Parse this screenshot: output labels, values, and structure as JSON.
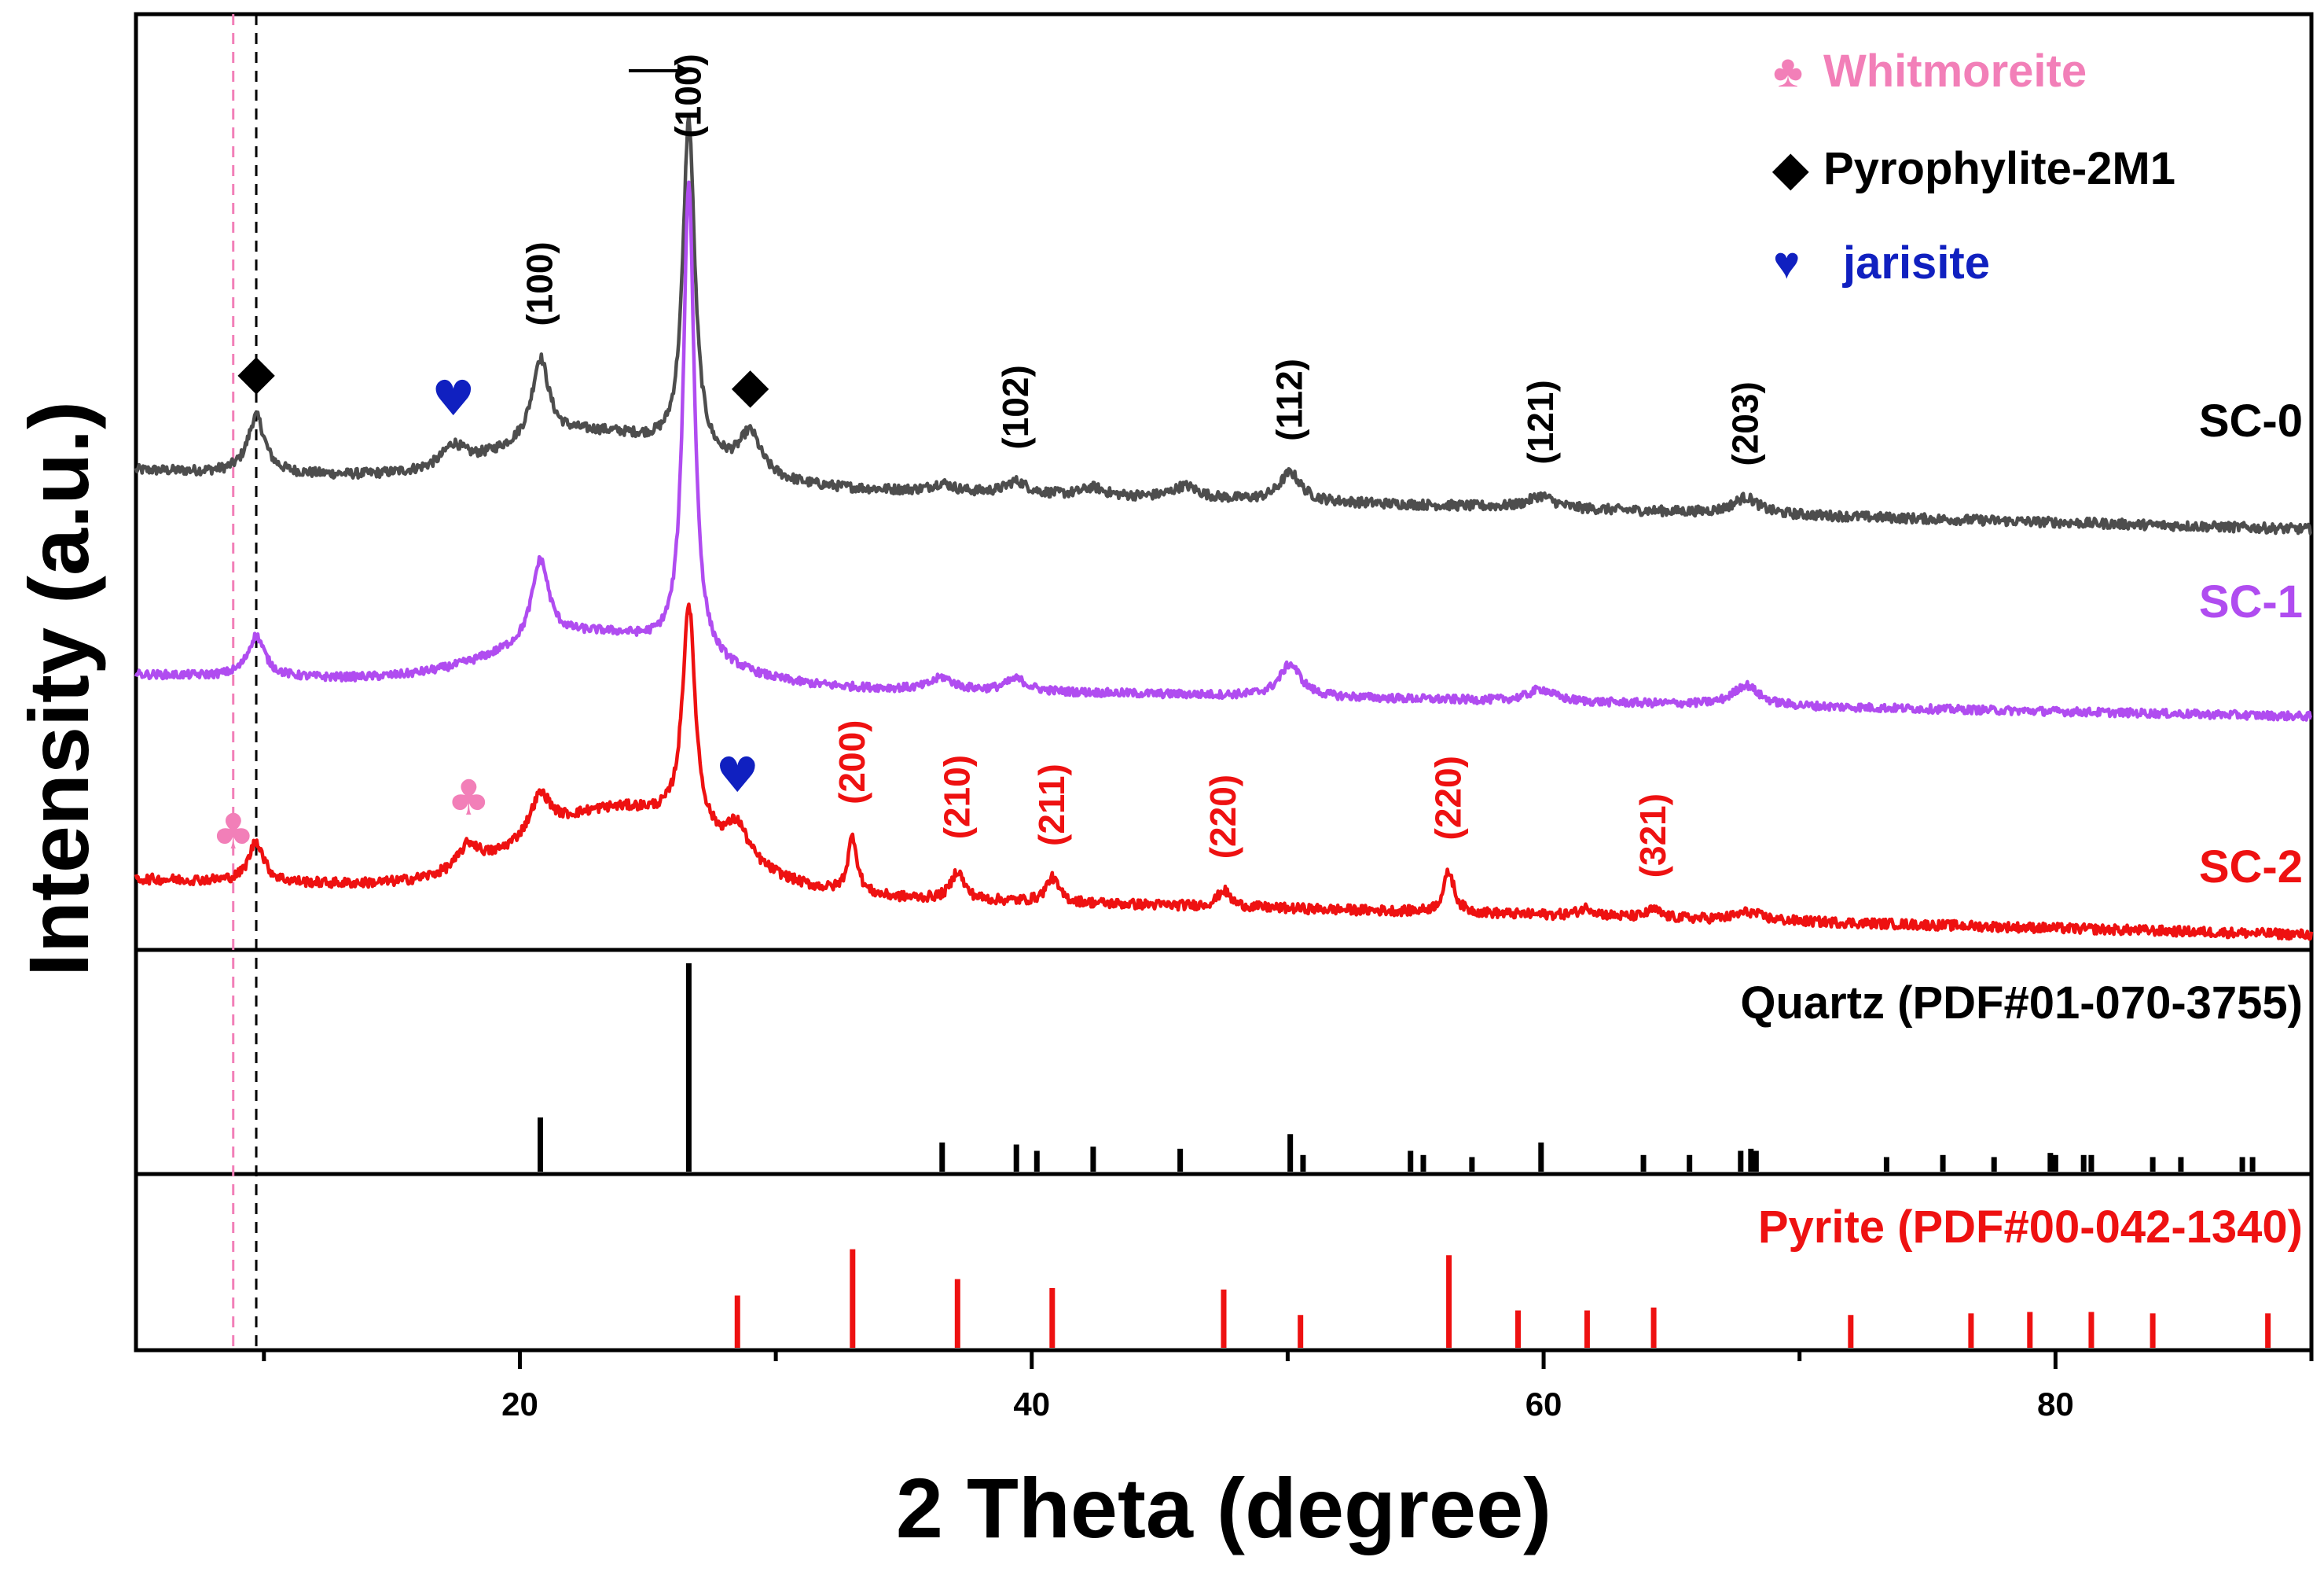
{
  "chart_data": {
    "type": "line",
    "xlabel": "2 Theta (degree)",
    "ylabel": "Intensity (a.u.)",
    "xlim": [
      5,
      90
    ],
    "xticks": [
      20,
      40,
      60,
      80
    ],
    "xticklabels": [
      "20",
      "40",
      "60",
      "80"
    ],
    "colors": {
      "SC-0": "#4d4d4d",
      "SC-1": "#b04cf0",
      "SC-2": "#ee1111",
      "whitmoreite": "#f27fb8",
      "pyrophylite": "#000000",
      "jarisite": "#1020c0",
      "quartz": "#000000",
      "pyrite": "#ee1111"
    },
    "legend": [
      {
        "marker": "club",
        "symbol": "♣",
        "label": "Whitmoreite",
        "color": "#f27fb8"
      },
      {
        "marker": "diamond",
        "symbol": "◆",
        "label": "Pyrophylite-2M1",
        "color": "#000000"
      },
      {
        "marker": "heart",
        "symbol": "♥",
        "label": "jarisite",
        "color": "#1020c0"
      }
    ],
    "series": [
      {
        "name": "SC-0",
        "label": "SC-0",
        "color": "#4d4d4d",
        "baseline": 0.85,
        "slope": -0.0017,
        "hump": {
          "center": 23,
          "width": 5,
          "height": 0.12
        },
        "noise": 0.012,
        "peaks": [
          [
            9.7,
            0.14,
            0.4
          ],
          [
            17.4,
            0.05,
            0.5
          ],
          [
            20.8,
            0.2,
            0.4
          ],
          [
            26.6,
            0.82,
            0.28
          ],
          [
            29.0,
            0.1,
            0.5
          ],
          [
            36.5,
            0.02,
            0.5
          ],
          [
            39.4,
            0.03,
            0.5
          ],
          [
            42.4,
            0.02,
            0.5
          ],
          [
            46.0,
            0.03,
            0.6
          ],
          [
            50.1,
            0.07,
            0.5
          ],
          [
            59.9,
            0.03,
            0.6
          ],
          [
            67.9,
            0.04,
            0.6
          ]
        ]
      },
      {
        "name": "SC-1",
        "label": "SC-1",
        "color": "#b04cf0",
        "baseline": 0.35,
        "slope": -0.0012,
        "hump": {
          "center": 23,
          "width": 5,
          "height": 0.12
        },
        "noise": 0.01,
        "peaks": [
          [
            9.7,
            0.1,
            0.4
          ],
          [
            20.8,
            0.2,
            0.4
          ],
          [
            26.6,
            1.16,
            0.26
          ],
          [
            36.5,
            0.03,
            0.5
          ],
          [
            39.4,
            0.03,
            0.5
          ],
          [
            50.1,
            0.08,
            0.5
          ],
          [
            59.9,
            0.03,
            0.6
          ],
          [
            67.9,
            0.05,
            0.6
          ]
        ]
      },
      {
        "name": "SC-2",
        "label": "SC-2",
        "color": "#ee1111",
        "baseline": -0.15,
        "slope": -0.0016,
        "hump": {
          "center": 24,
          "width": 5,
          "height": 0.2
        },
        "noise": 0.012,
        "peaks": [
          [
            9.7,
            0.1,
            0.35
          ],
          [
            18.0,
            0.06,
            0.5
          ],
          [
            20.8,
            0.1,
            0.5
          ],
          [
            26.6,
            0.55,
            0.3
          ],
          [
            28.5,
            0.08,
            0.5
          ],
          [
            33.0,
            0.14,
            0.22
          ],
          [
            37.1,
            0.07,
            0.3
          ],
          [
            40.8,
            0.06,
            0.3
          ],
          [
            47.5,
            0.04,
            0.3
          ],
          [
            56.3,
            0.1,
            0.25
          ],
          [
            61.7,
            0.02,
            0.4
          ],
          [
            64.3,
            0.02,
            0.3
          ],
          [
            68.0,
            0.02,
            0.6
          ]
        ]
      }
    ],
    "vlines": [
      {
        "x": 8.8,
        "color": "#f27fb8"
      },
      {
        "x": 9.7,
        "color": "#000000"
      }
    ],
    "annotations": [
      {
        "text": "(100)",
        "x": 20.8,
        "series": "SC-0",
        "color": "#000000"
      },
      {
        "text": "(100)",
        "x": 26.6,
        "series": "SC-0",
        "color": "#000000"
      },
      {
        "text": "(102)",
        "x": 39.4,
        "series": "SC-0",
        "color": "#000000"
      },
      {
        "text": "(112)",
        "x": 50.1,
        "series": "SC-0",
        "color": "#000000"
      },
      {
        "text": "(121)",
        "x": 59.9,
        "series": "SC-0",
        "color": "#000000"
      },
      {
        "text": "(203)",
        "x": 67.9,
        "series": "SC-0",
        "color": "#000000"
      },
      {
        "text": "(200)",
        "x": 33.0,
        "series": "SC-2",
        "color": "#ee1111"
      },
      {
        "text": "(210)",
        "x": 37.1,
        "series": "SC-2",
        "color": "#ee1111"
      },
      {
        "text": "(211)",
        "x": 40.8,
        "series": "SC-2",
        "color": "#ee1111"
      },
      {
        "text": "(220)",
        "x": 47.5,
        "series": "SC-2",
        "color": "#ee1111"
      },
      {
        "text": "(220)",
        "x": 56.3,
        "series": "SC-2",
        "color": "#ee1111"
      },
      {
        "text": "(321)",
        "x": 64.3,
        "series": "SC-2",
        "color": "#ee1111"
      }
    ],
    "markers": [
      {
        "type": "diamond",
        "symbol": "◆",
        "x": 9.7,
        "series": "SC-0",
        "color": "#000000"
      },
      {
        "type": "heart",
        "symbol": "♥",
        "x": 17.4,
        "series": "SC-0",
        "color": "#1020c0"
      },
      {
        "type": "diamond",
        "symbol": "◆",
        "x": 29.0,
        "series": "SC-0",
        "color": "#000000"
      },
      {
        "type": "club",
        "symbol": "♣",
        "x": 8.8,
        "series": "SC-2",
        "color": "#f27fb8"
      },
      {
        "type": "club",
        "symbol": "♣",
        "x": 18.0,
        "series": "SC-2",
        "color": "#f27fb8"
      },
      {
        "type": "heart",
        "symbol": "♥",
        "x": 28.5,
        "series": "SC-2",
        "color": "#1020c0"
      }
    ],
    "reference_patterns": [
      {
        "name": "Quartz (PDF#01-070-3755)",
        "color": "#000000",
        "lines": [
          [
            20.8,
            0.26
          ],
          [
            26.6,
            1.0
          ],
          [
            36.5,
            0.14
          ],
          [
            39.4,
            0.13
          ],
          [
            40.2,
            0.1
          ],
          [
            42.4,
            0.12
          ],
          [
            45.8,
            0.11
          ],
          [
            50.1,
            0.18
          ],
          [
            50.6,
            0.08
          ],
          [
            54.8,
            0.1
          ],
          [
            55.3,
            0.08
          ],
          [
            57.2,
            0.07
          ],
          [
            59.9,
            0.14
          ],
          [
            63.9,
            0.08
          ],
          [
            65.7,
            0.08
          ],
          [
            67.7,
            0.1
          ],
          [
            68.1,
            0.11
          ],
          [
            68.3,
            0.1
          ],
          [
            73.4,
            0.07
          ],
          [
            75.6,
            0.08
          ],
          [
            77.6,
            0.07
          ],
          [
            79.8,
            0.09
          ],
          [
            80.0,
            0.08
          ],
          [
            81.1,
            0.08
          ],
          [
            81.4,
            0.08
          ],
          [
            83.8,
            0.07
          ],
          [
            84.9,
            0.07
          ],
          [
            87.3,
            0.07
          ],
          [
            87.7,
            0.07
          ]
        ]
      },
      {
        "name": "Pyrite (PDF#00-042-1340)",
        "color": "#ee1111",
        "lines": [
          [
            28.5,
            0.35
          ],
          [
            33.0,
            0.66
          ],
          [
            37.1,
            0.46
          ],
          [
            40.8,
            0.4
          ],
          [
            47.5,
            0.39
          ],
          [
            50.5,
            0.22
          ],
          [
            56.3,
            0.62
          ],
          [
            59.0,
            0.25
          ],
          [
            61.7,
            0.25
          ],
          [
            64.3,
            0.27
          ],
          [
            72.0,
            0.22
          ],
          [
            76.7,
            0.23
          ],
          [
            79.0,
            0.24
          ],
          [
            81.4,
            0.24
          ],
          [
            83.8,
            0.23
          ],
          [
            88.3,
            0.23
          ]
        ]
      }
    ]
  }
}
